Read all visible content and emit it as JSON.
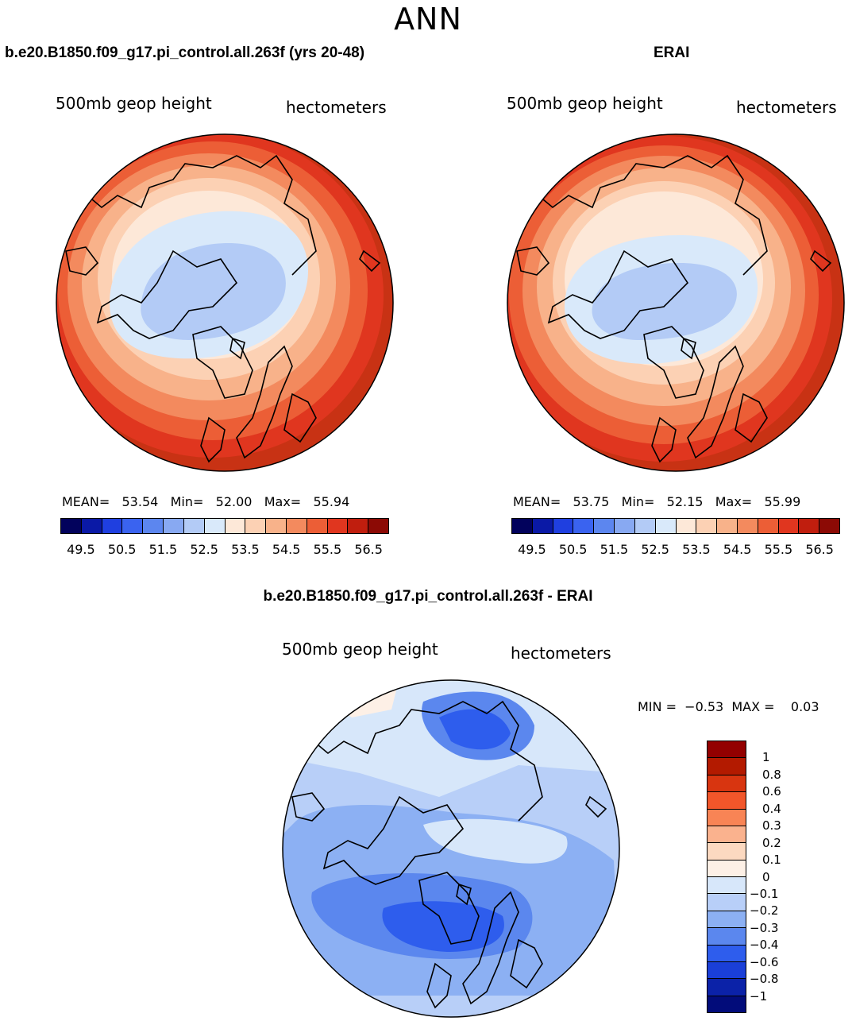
{
  "title": "ANN",
  "chart_data": [
    {
      "type": "heatmap",
      "projection": "north-polar stereographic",
      "case_title": "b.e20.B1850.f09_g17.pi_control.all.263f (yrs 20-48)",
      "left_label": "500mb geop height",
      "right_label": "hectometers",
      "stats": {
        "mean_label": "MEAN=",
        "mean": "53.54",
        "min_label": "Min=",
        "min": "52.00",
        "max_label": "Max=",
        "max": "55.94"
      },
      "colorbar_ticks": [
        "49.5",
        "50.5",
        "51.5",
        "52.5",
        "53.5",
        "54.5",
        "55.5",
        "56.5"
      ],
      "contour_levels": [
        49.5,
        50,
        50.5,
        51,
        51.5,
        52,
        52.5,
        53,
        53.5,
        54,
        54.5,
        55,
        55.5,
        56,
        56.5
      ]
    },
    {
      "type": "heatmap",
      "projection": "north-polar stereographic",
      "case_title": "ERAI",
      "left_label": "500mb geop height",
      "right_label": "hectometers",
      "stats": {
        "mean_label": "MEAN=",
        "mean": "53.75",
        "min_label": "Min=",
        "min": "52.15",
        "max_label": "Max=",
        "max": "55.99"
      },
      "colorbar_ticks": [
        "49.5",
        "50.5",
        "51.5",
        "52.5",
        "53.5",
        "54.5",
        "55.5",
        "56.5"
      ],
      "contour_levels": [
        49.5,
        50,
        50.5,
        51,
        51.5,
        52,
        52.5,
        53,
        53.5,
        54,
        54.5,
        55,
        55.5,
        56,
        56.5
      ]
    },
    {
      "type": "heatmap",
      "projection": "north-polar stereographic",
      "case_title": "b.e20.B1850.f09_g17.pi_control.all.263f - ERAI",
      "left_label": "500mb geop height",
      "right_label": "hectometers",
      "stats": {
        "min_label": "MIN =",
        "min": "−0.53",
        "max_label": "MAX =",
        "max": "0.03"
      },
      "colorbar_labels": [
        "1",
        "0.8",
        "0.6",
        "0.4",
        "0.3",
        "0.2",
        "0.1",
        "0",
        "−0.1",
        "−0.2",
        "−0.3",
        "−0.4",
        "−0.6",
        "−0.8",
        "−1"
      ]
    }
  ],
  "colors": {
    "abs_scale": [
      "#02025c",
      "#0a19a6",
      "#1f3fe0",
      "#3a63f0",
      "#5c86ef",
      "#88a9f2",
      "#b3cbf6",
      "#d9e9fa",
      "#fde8d8",
      "#fcd1b4",
      "#f8b28a",
      "#f38a5e",
      "#ec5e36",
      "#e0361f",
      "#c01e0e",
      "#8c0a05"
    ],
    "diff_scale": [
      "#930000",
      "#b31a00",
      "#d83510",
      "#f2562a",
      "#f88455",
      "#fab28e",
      "#fcd9c0",
      "#fdf0e6",
      "#d7e7fa",
      "#b8cff8",
      "#8cb0f3",
      "#5b87ee",
      "#2e5ded",
      "#1a3fd8",
      "#0b22a8",
      "#020c7a"
    ]
  }
}
